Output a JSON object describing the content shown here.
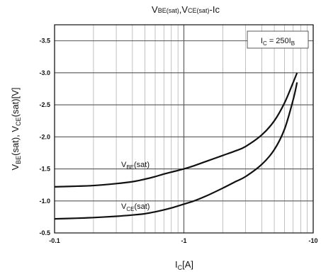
{
  "chart_data": {
    "type": "line",
    "title": {
      "main": "V",
      "sub1": "BE(sat)",
      "sep": ",V",
      "sub2": "CE(sat)",
      "tail": "-Ic"
    },
    "xlabel": {
      "main": "I",
      "sub": "C",
      "tail": "[A]"
    },
    "ylabel": {
      "p1": "V",
      "s1": "BE",
      "p2": "(sat),  V",
      "s2": "CE",
      "p3": "(sat)[V]"
    },
    "x_scale": "log",
    "xlim": [
      -0.1,
      -10
    ],
    "ylim": [
      -0.5,
      -3.75
    ],
    "x_ticks": [
      {
        "value": -0.1,
        "label": "-0.1"
      },
      {
        "value": -1,
        "label": "-1"
      },
      {
        "value": -10,
        "label": "-10"
      }
    ],
    "y_ticks": [
      {
        "value": -0.5,
        "label": "-0.5"
      },
      {
        "value": -1.0,
        "label": "-1.0"
      },
      {
        "value": -1.5,
        "label": "-1.5"
      },
      {
        "value": -2.0,
        "label": "-2.0"
      },
      {
        "value": -2.5,
        "label": "-2.5"
      },
      {
        "value": -3.0,
        "label": "-3.0"
      },
      {
        "value": -3.5,
        "label": "-3.5"
      }
    ],
    "grid": true,
    "condition": {
      "main": "I",
      "sub1": "C",
      "mid": " = 250I",
      "sub2": "B"
    },
    "series": [
      {
        "key": "vbe",
        "label": {
          "main": "V",
          "sub": "BE",
          "tail": "(sat)"
        },
        "x": [
          -0.1,
          -0.15,
          -0.2,
          -0.3,
          -0.4,
          -0.5,
          -0.6,
          -0.7,
          -0.8,
          -1.0,
          -1.2,
          -1.5,
          -2,
          -2.5,
          -3,
          -4,
          -5,
          -6,
          -7,
          -7.5
        ],
        "y": [
          -1.22,
          -1.23,
          -1.24,
          -1.27,
          -1.3,
          -1.34,
          -1.38,
          -1.42,
          -1.45,
          -1.5,
          -1.55,
          -1.62,
          -1.71,
          -1.78,
          -1.85,
          -2.03,
          -2.25,
          -2.53,
          -2.85,
          -3.0
        ]
      },
      {
        "key": "vce",
        "label": {
          "main": "V",
          "sub": "CE",
          "tail": "(sat)"
        },
        "x": [
          -0.1,
          -0.15,
          -0.2,
          -0.3,
          -0.4,
          -0.5,
          -0.6,
          -0.7,
          -0.8,
          -1.0,
          -1.2,
          -1.5,
          -2,
          -2.5,
          -3,
          -4,
          -5,
          -6,
          -7,
          -7.5
        ],
        "y": [
          -0.72,
          -0.73,
          -0.74,
          -0.76,
          -0.78,
          -0.8,
          -0.83,
          -0.86,
          -0.89,
          -0.95,
          -1.0,
          -1.08,
          -1.2,
          -1.3,
          -1.38,
          -1.57,
          -1.8,
          -2.12,
          -2.58,
          -2.85
        ]
      }
    ]
  }
}
